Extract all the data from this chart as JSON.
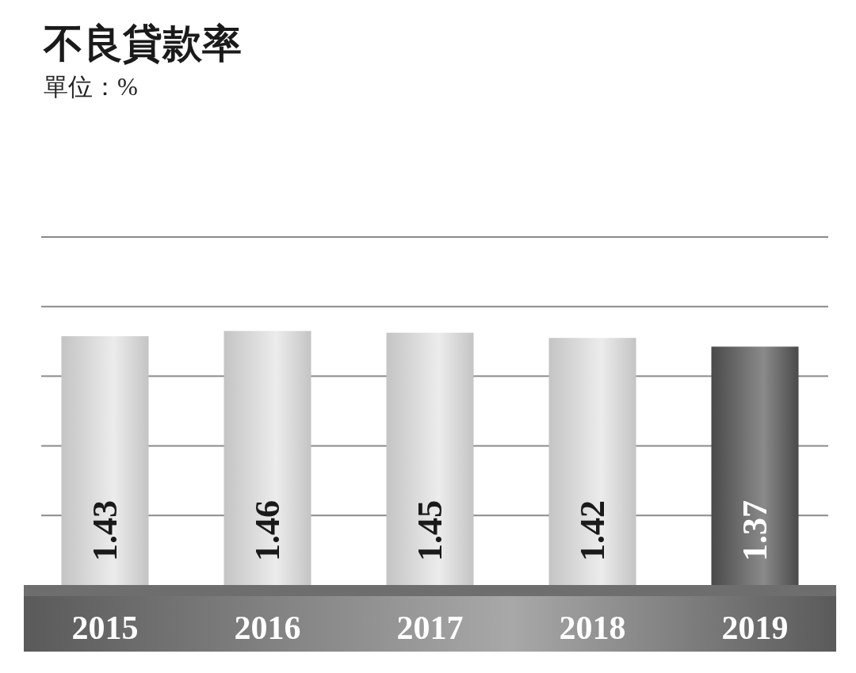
{
  "chart_data": {
    "type": "bar",
    "title": "不良貸款率",
    "subtitle": "單位：%",
    "categories": [
      "2015",
      "2016",
      "2017",
      "2018",
      "2019"
    ],
    "values": [
      1.43,
      1.46,
      1.45,
      1.42,
      1.37
    ],
    "colors": [
      "#c4c4c4",
      "#c4c4c4",
      "#c4c4c4",
      "#c4c4c4",
      "#4a4a4a"
    ],
    "data_labels": true,
    "ylim": [
      0,
      2.0
    ],
    "yticks": [
      {
        "value": 0.4,
        "label": null
      },
      {
        "value": 0.8,
        "label": null
      },
      {
        "value": 1.2,
        "label": null
      },
      {
        "value": 1.6,
        "label": null
      },
      {
        "value": 2.0,
        "label": null
      }
    ],
    "grid": "y",
    "tick_labels": "x"
  }
}
